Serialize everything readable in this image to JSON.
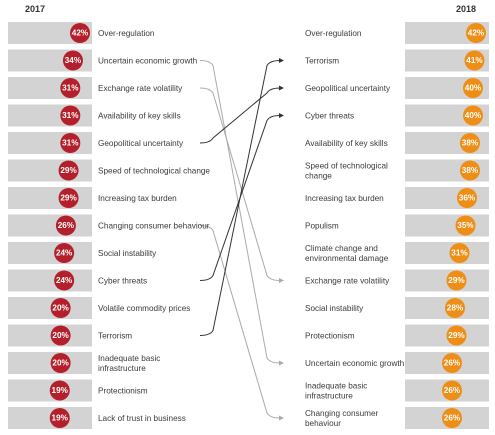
{
  "chart_data": {
    "type": "slope",
    "unit": "%",
    "left": {
      "year": "2017",
      "items": [
        {
          "label": "Over-regulation",
          "value": 42
        },
        {
          "label": "Uncertain economic growth",
          "value": 34
        },
        {
          "label": "Exchange rate volatility",
          "value": 31
        },
        {
          "label": "Availability of key skills",
          "value": 31
        },
        {
          "label": "Geopolitical uncertainty",
          "value": 31
        },
        {
          "label": "Speed of technological change",
          "value": 29
        },
        {
          "label": "Increasing tax burden",
          "value": 29
        },
        {
          "label": "Changing consumer behaviour",
          "value": 26
        },
        {
          "label": "Social instability",
          "value": 24
        },
        {
          "label": "Cyber threats",
          "value": 24
        },
        {
          "label": "Volatile commodity prices",
          "value": 20
        },
        {
          "label": "Terrorism",
          "value": 20
        },
        {
          "label": "Inadequate basic|infrastructure",
          "value": 20
        },
        {
          "label": "Protectionism",
          "value": 19
        },
        {
          "label": "Lack of trust in business",
          "value": 19
        }
      ]
    },
    "right": {
      "year": "2018",
      "items": [
        {
          "label": "Over-regulation",
          "value": 42
        },
        {
          "label": "Terrorism",
          "value": 41
        },
        {
          "label": "Geopolitical uncertainty",
          "value": 40
        },
        {
          "label": "Cyber threats",
          "value": 40
        },
        {
          "label": "Availability of key skills",
          "value": 38
        },
        {
          "label": "Speed of technological|change",
          "value": 38
        },
        {
          "label": "Increasing tax burden",
          "value": 36
        },
        {
          "label": "Populism",
          "value": 35
        },
        {
          "label": "Climate change and|environmental damage",
          "value": 31
        },
        {
          "label": "Exchange rate volatility",
          "value": 29
        },
        {
          "label": "Social instability",
          "value": 28
        },
        {
          "label": "Protectionism",
          "value": 29
        },
        {
          "label": "Uncertain economic growth",
          "value": 26
        },
        {
          "label": "Inadequate basic|infrastructure",
          "value": 26
        },
        {
          "label": "Changing consumer|behaviour",
          "value": 26
        }
      ]
    },
    "connections": [
      {
        "from": "Uncertain economic growth",
        "to": "Uncertain economic growth",
        "color": "#aaaaaa"
      },
      {
        "from": "Exchange rate volatility",
        "to": "Exchange rate volatility",
        "color": "#aaaaaa"
      },
      {
        "from": "Geopolitical uncertainty",
        "to": "Geopolitical uncertainty",
        "color": "#333333"
      },
      {
        "from": "Changing consumer behaviour",
        "to": "Changing consumer|behaviour",
        "color": "#aaaaaa"
      },
      {
        "from": "Cyber threats",
        "to": "Cyber threats",
        "color": "#333333"
      },
      {
        "from": "Terrorism",
        "to": "Terrorism",
        "color": "#333333"
      }
    ],
    "colors": {
      "left_circle": "#b3202b",
      "right_circle": "#ee8e16",
      "bar": "#d3d3d3",
      "line_up": "#333333",
      "line_down": "#aaaaaa"
    }
  }
}
